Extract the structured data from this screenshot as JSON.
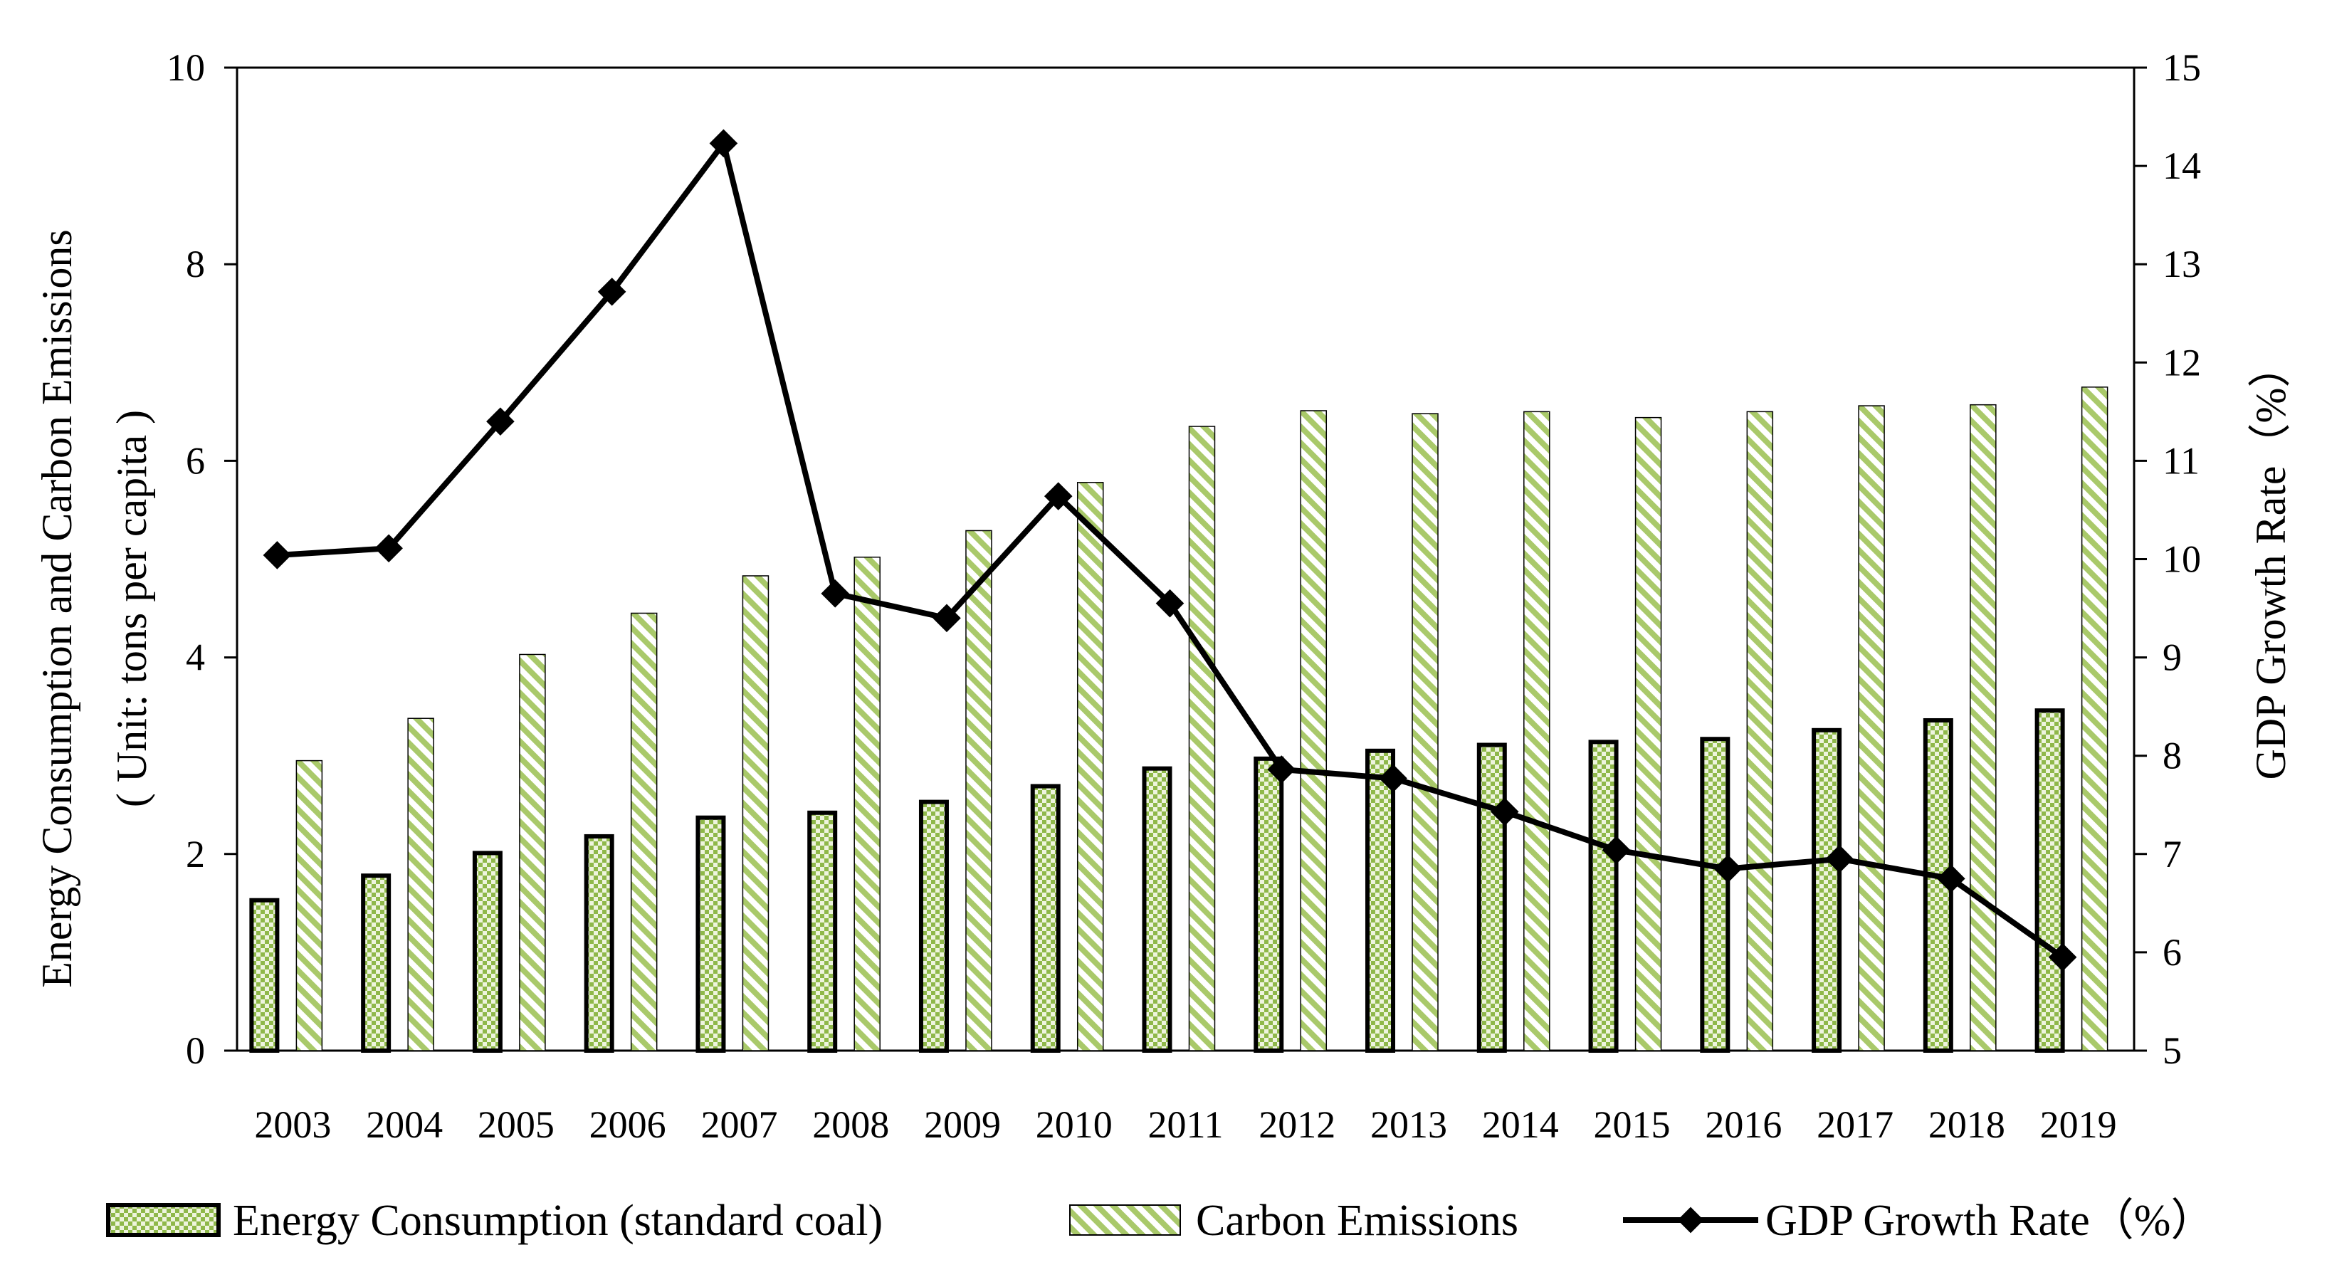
{
  "chart_data": {
    "type": "bar",
    "categories": [
      "2003",
      "2004",
      "2005",
      "2006",
      "2007",
      "2008",
      "2009",
      "2010",
      "2011",
      "2012",
      "2013",
      "2014",
      "2015",
      "2016",
      "2017",
      "2018",
      "2019"
    ],
    "series": [
      {
        "name": "Energy Consumption (standard coal)",
        "type": "bar",
        "axis": "left",
        "values": [
          1.53,
          1.78,
          2.01,
          2.18,
          2.37,
          2.42,
          2.53,
          2.69,
          2.87,
          2.97,
          3.05,
          3.11,
          3.14,
          3.17,
          3.26,
          3.36,
          3.46
        ]
      },
      {
        "name": "Carbon Emissions",
        "type": "bar",
        "axis": "left",
        "values": [
          2.95,
          3.38,
          4.03,
          4.45,
          4.83,
          5.02,
          5.29,
          5.78,
          6.35,
          6.51,
          6.48,
          6.5,
          6.44,
          6.5,
          6.56,
          6.57,
          6.75
        ]
      },
      {
        "name": "GDP Growth Rate（%）",
        "type": "line",
        "axis": "right",
        "values": [
          10.04,
          10.11,
          11.4,
          12.72,
          14.23,
          9.65,
          9.4,
          10.64,
          9.55,
          7.86,
          7.77,
          7.43,
          7.04,
          6.85,
          6.95,
          6.75,
          5.95
        ]
      }
    ],
    "y_left": {
      "label_line1": "Energy Consumption and Carbon Emissions",
      "label_line2": "( Unit: tons per capita )",
      "ylim": [
        0,
        10
      ],
      "ticks": [
        "0",
        "2",
        "4",
        "6",
        "8",
        "10"
      ]
    },
    "y_right": {
      "label": "GDP Growth Rate（%）",
      "ylim": [
        5,
        15
      ],
      "ticks": [
        "5",
        "6",
        "7",
        "8",
        "9",
        "10",
        "11",
        "12",
        "13",
        "14",
        "15"
      ]
    },
    "grid": false,
    "legend_position": "bottom",
    "colors": {
      "bar_fill": "#a9c96a",
      "bar_fill_light": "#c8dca0",
      "bar_stroke": "#000000",
      "line": "#000000"
    }
  }
}
